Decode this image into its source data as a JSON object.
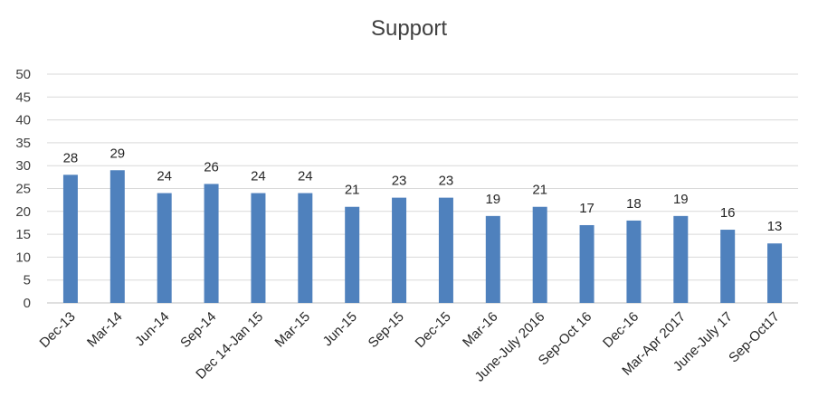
{
  "chart_data": {
    "type": "bar",
    "title": "Support",
    "xlabel": "",
    "ylabel": "",
    "ylim": [
      0,
      50
    ],
    "yticks": [
      0,
      5,
      10,
      15,
      20,
      25,
      30,
      35,
      40,
      45,
      50
    ],
    "grid": true,
    "legend": "none",
    "bar_color": "#4f81bd",
    "categories": [
      "Dec-13",
      "Mar-14",
      "Jun-14",
      "Sep-14",
      "Dec 14-Jan 15",
      "Mar-15",
      "Jun-15",
      "Sep-15",
      "Dec-15",
      "Mar-16",
      "June-July 2016",
      "Sep-Oct 16",
      "Dec-16",
      "Mar-Apr 2017",
      "June-July 17",
      "Sep-Oct17"
    ],
    "values": [
      28,
      29,
      24,
      26,
      24,
      24,
      21,
      23,
      23,
      19,
      21,
      17,
      18,
      19,
      16,
      13
    ]
  }
}
